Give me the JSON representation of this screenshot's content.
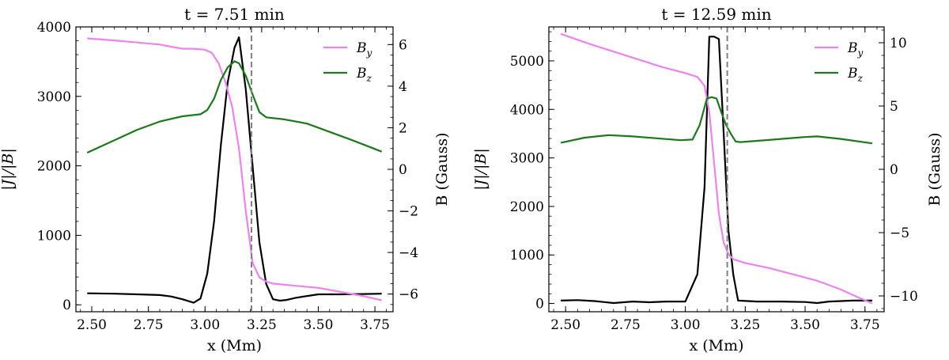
{
  "chart_data": [
    {
      "type": "line",
      "title": "t = 7.51 min",
      "xlabel": "x (Mm)",
      "ylabel_left": "|J|/|B|",
      "ylabel_right": "B (Gauss)",
      "xlim": [
        2.43,
        3.83
      ],
      "ylim_left": [
        -100,
        4000
      ],
      "ylim_right": [
        -6.85,
        6.85
      ],
      "xticks": [
        2.5,
        2.75,
        3.0,
        3.25,
        3.5,
        3.75
      ],
      "xtick_labels": [
        "2.50",
        "2.75",
        "3.00",
        "3.25",
        "3.50",
        "3.75"
      ],
      "yticks_left": [
        0,
        1000,
        2000,
        3000,
        4000
      ],
      "yticks_left_labels": [
        "0",
        "1000",
        "2000",
        "3000",
        "4000"
      ],
      "yticks_right": [
        -6,
        -4,
        -2,
        0,
        2,
        4,
        6
      ],
      "yticks_right_labels": [
        "−6",
        "−4",
        "−2",
        "0",
        "2",
        "4",
        "6"
      ],
      "vline_x": 3.205,
      "legend": [
        "B_y",
        "B_z"
      ],
      "series": [
        {
          "name": "|J|/|B|",
          "axis": "left",
          "color": "#000000",
          "x": [
            2.48,
            2.6,
            2.7,
            2.8,
            2.85,
            2.9,
            2.95,
            2.98,
            3.01,
            3.04,
            3.07,
            3.1,
            3.13,
            3.15,
            3.18,
            3.21,
            3.24,
            3.27,
            3.3,
            3.33,
            3.36,
            3.4,
            3.5,
            3.6,
            3.7,
            3.78
          ],
          "values": [
            165,
            160,
            150,
            140,
            120,
            80,
            30,
            90,
            450,
            1200,
            2300,
            3200,
            3700,
            3850,
            3100,
            2000,
            900,
            300,
            80,
            60,
            70,
            100,
            150,
            150,
            155,
            160
          ]
        },
        {
          "name": "B_y",
          "axis": "right",
          "color": "#ee82ee",
          "x": [
            2.48,
            2.6,
            2.7,
            2.8,
            2.85,
            2.9,
            2.95,
            3.0,
            3.03,
            3.06,
            3.09,
            3.12,
            3.15,
            3.18,
            3.21,
            3.24,
            3.27,
            3.3,
            3.4,
            3.5,
            3.6,
            3.7,
            3.78
          ],
          "values": [
            6.3,
            6.2,
            6.1,
            6.0,
            5.9,
            5.8,
            5.8,
            5.75,
            5.6,
            5.1,
            4.2,
            3.0,
            1.0,
            -2.0,
            -4.5,
            -5.2,
            -5.4,
            -5.5,
            -5.6,
            -5.7,
            -5.9,
            -6.1,
            -6.3
          ]
        },
        {
          "name": "B_z",
          "axis": "right",
          "color": "#1a7a1a",
          "x": [
            2.48,
            2.6,
            2.7,
            2.8,
            2.9,
            2.98,
            3.01,
            3.04,
            3.07,
            3.1,
            3.13,
            3.15,
            3.18,
            3.21,
            3.24,
            3.27,
            3.35,
            3.45,
            3.55,
            3.65,
            3.78
          ],
          "values": [
            0.8,
            1.4,
            1.9,
            2.3,
            2.55,
            2.65,
            2.85,
            3.4,
            4.3,
            4.9,
            5.2,
            5.1,
            4.5,
            3.6,
            2.75,
            2.5,
            2.4,
            2.2,
            1.8,
            1.4,
            0.85
          ]
        }
      ]
    },
    {
      "type": "line",
      "title": "t = 12.59 min",
      "xlabel": "x (Mm)",
      "ylabel_left": "|J|/|B|",
      "ylabel_right": "B (Gauss)",
      "xlim": [
        2.43,
        3.83
      ],
      "ylim_left": [
        -170,
        5700
      ],
      "ylim_right": [
        -11.25,
        11.25
      ],
      "xticks": [
        2.5,
        2.75,
        3.0,
        3.25,
        3.5,
        3.75
      ],
      "xtick_labels": [
        "2.50",
        "2.75",
        "3.00",
        "3.25",
        "3.50",
        "3.75"
      ],
      "yticks_left": [
        0,
        1000,
        2000,
        3000,
        4000,
        5000
      ],
      "yticks_left_labels": [
        "0",
        "1000",
        "2000",
        "3000",
        "4000",
        "5000"
      ],
      "yticks_right": [
        -10,
        -5,
        0,
        5,
        10
      ],
      "yticks_right_labels": [
        "−10",
        "−5",
        "0",
        "5",
        "10"
      ],
      "vline_x": 3.175,
      "legend": [
        "B_y",
        "B_z"
      ],
      "series": [
        {
          "name": "|J|/|B|",
          "axis": "left",
          "color": "#000000",
          "x": [
            2.48,
            2.55,
            2.62,
            2.7,
            2.78,
            2.85,
            2.92,
            3.0,
            3.05,
            3.08,
            3.1,
            3.12,
            3.14,
            3.16,
            3.18,
            3.2,
            3.22,
            3.3,
            3.4,
            3.5,
            3.55,
            3.6,
            3.7,
            3.78
          ],
          "values": [
            60,
            70,
            50,
            10,
            40,
            25,
            40,
            40,
            600,
            2400,
            5500,
            5500,
            5450,
            3500,
            1500,
            600,
            60,
            40,
            40,
            30,
            10,
            40,
            60,
            60
          ]
        },
        {
          "name": "B_y",
          "axis": "right",
          "color": "#ee82ee",
          "x": [
            2.48,
            2.6,
            2.7,
            2.8,
            2.9,
            3.0,
            3.05,
            3.08,
            3.1,
            3.12,
            3.14,
            3.16,
            3.18,
            3.2,
            3.25,
            3.35,
            3.45,
            3.55,
            3.65,
            3.72,
            3.78
          ],
          "values": [
            10.7,
            9.9,
            9.3,
            8.7,
            8.1,
            7.6,
            7.3,
            6.6,
            4.5,
            0.5,
            -3.5,
            -5.8,
            -6.7,
            -7.1,
            -7.4,
            -7.8,
            -8.3,
            -8.8,
            -9.5,
            -10.1,
            -10.6
          ]
        },
        {
          "name": "B_z",
          "axis": "right",
          "color": "#1a7a1a",
          "x": [
            2.48,
            2.58,
            2.68,
            2.78,
            2.88,
            2.98,
            3.03,
            3.06,
            3.09,
            3.11,
            3.13,
            3.15,
            3.17,
            3.19,
            3.21,
            3.23,
            3.3,
            3.4,
            3.5,
            3.55,
            3.65,
            3.78
          ],
          "values": [
            2.1,
            2.5,
            2.7,
            2.6,
            2.45,
            2.3,
            2.35,
            3.5,
            5.6,
            5.7,
            5.6,
            4.5,
            3.5,
            2.8,
            2.2,
            2.15,
            2.25,
            2.4,
            2.55,
            2.6,
            2.4,
            2.05
          ]
        }
      ]
    }
  ]
}
